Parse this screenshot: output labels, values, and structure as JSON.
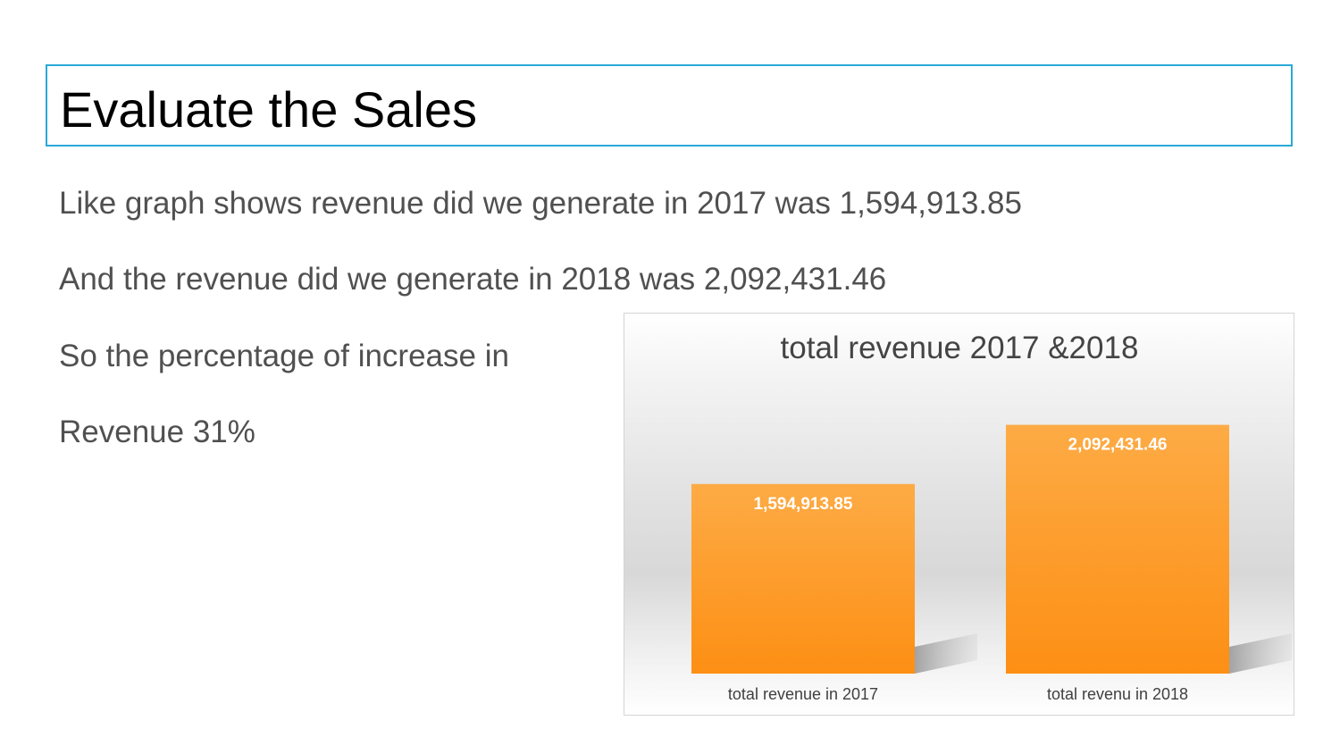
{
  "slide": {
    "title": "Evaluate the Sales",
    "lines": [
      "Like graph shows revenue did we generate in 2017 was 1,594,913.85",
      "And the revenue did we generate in 2018 was 2,092,431.46",
      "So the percentage of increase in",
      "Revenue 31%"
    ]
  },
  "chart_data": {
    "type": "bar",
    "title": "total revenue 2017 &2018",
    "categories": [
      "total revenue in 2017",
      "total revenu in 2018"
    ],
    "values": [
      1594913.85,
      2092431.46
    ],
    "data_labels": [
      "1,594,913.85",
      "2,092,431.46"
    ],
    "ylim": [
      0,
      2600000
    ],
    "grid": false,
    "legend": "none",
    "bar_color_top": "#fdab45",
    "bar_color_bottom": "#fd8f14"
  }
}
